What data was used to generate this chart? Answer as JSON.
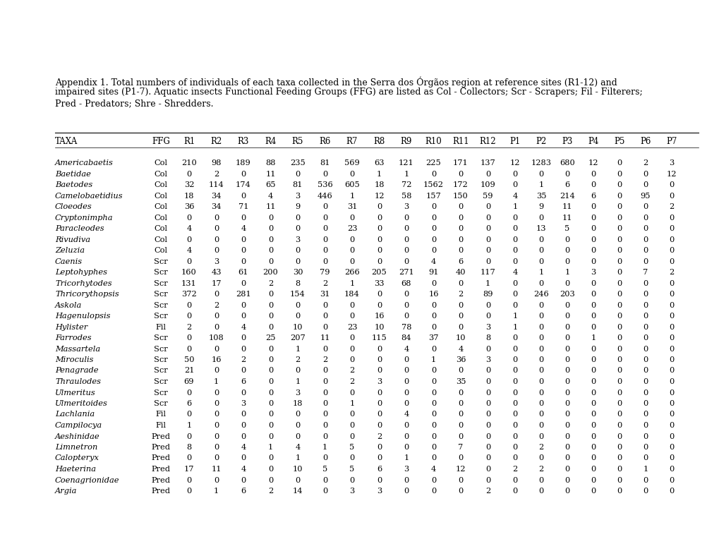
{
  "caption_line1": "Appendix 1. Total numbers of individuals of each taxa collected in the Serra dos Órgãos region at reference sites (R1-12) and",
  "caption_line2": "impaired sites (P1-7). Aquatic insects Functional Feeding Groups (FFG) are listed as Col - Collectors; Scr - Scrapers; Fil - Filterers;",
  "caption_line3": "Pred - Predators; Shre - Shredders.",
  "columns": [
    "TAXA",
    "FFG",
    "R1",
    "R2",
    "R3",
    "R4",
    "R5",
    "R6",
    "R7",
    "R8",
    "R9",
    "R10",
    "R11",
    "R12",
    "P1",
    "P2",
    "P3",
    "P4",
    "P5",
    "P6",
    "P7"
  ],
  "rows": [
    [
      "Americabaetis",
      "Col",
      210,
      98,
      189,
      88,
      235,
      81,
      569,
      63,
      121,
      225,
      171,
      137,
      12,
      1283,
      680,
      12,
      0,
      2,
      3
    ],
    [
      "Baetidae",
      "Col",
      0,
      2,
      0,
      11,
      0,
      0,
      0,
      1,
      1,
      0,
      0,
      0,
      0,
      0,
      0,
      0,
      0,
      0,
      12
    ],
    [
      "Baetodes",
      "Col",
      32,
      114,
      174,
      65,
      81,
      536,
      605,
      18,
      72,
      1562,
      172,
      109,
      0,
      1,
      6,
      0,
      0,
      0,
      0
    ],
    [
      "Camelobaetidius",
      "Col",
      18,
      34,
      0,
      4,
      3,
      446,
      1,
      12,
      58,
      157,
      150,
      59,
      4,
      35,
      214,
      6,
      0,
      95,
      0
    ],
    [
      "Cloeodes",
      "Col",
      36,
      34,
      71,
      11,
      9,
      0,
      31,
      0,
      3,
      0,
      0,
      0,
      1,
      9,
      11,
      0,
      0,
      0,
      2
    ],
    [
      "Cryptonimpha",
      "Col",
      0,
      0,
      0,
      0,
      0,
      0,
      0,
      0,
      0,
      0,
      0,
      0,
      0,
      0,
      11,
      0,
      0,
      0,
      0
    ],
    [
      "Paracleodes",
      "Col",
      4,
      0,
      4,
      0,
      0,
      0,
      23,
      0,
      0,
      0,
      0,
      0,
      0,
      13,
      5,
      0,
      0,
      0,
      0
    ],
    [
      "Rivudiva",
      "Col",
      0,
      0,
      0,
      0,
      3,
      0,
      0,
      0,
      0,
      0,
      0,
      0,
      0,
      0,
      0,
      0,
      0,
      0,
      0
    ],
    [
      "Zeluzia",
      "Col",
      4,
      0,
      0,
      0,
      0,
      0,
      0,
      0,
      0,
      0,
      0,
      0,
      0,
      0,
      0,
      0,
      0,
      0,
      0
    ],
    [
      "Caenis",
      "Scr",
      0,
      3,
      0,
      0,
      0,
      0,
      0,
      0,
      0,
      4,
      6,
      0,
      0,
      0,
      0,
      0,
      0,
      0,
      0
    ],
    [
      "Leptohyphes",
      "Scr",
      160,
      43,
      61,
      200,
      30,
      79,
      266,
      205,
      271,
      91,
      40,
      117,
      4,
      1,
      1,
      3,
      0,
      7,
      2
    ],
    [
      "Tricorhytodes",
      "Scr",
      131,
      17,
      0,
      2,
      8,
      2,
      1,
      33,
      68,
      0,
      0,
      1,
      0,
      0,
      0,
      0,
      0,
      0,
      0
    ],
    [
      "Thricorythopsis",
      "Scr",
      372,
      0,
      281,
      0,
      154,
      31,
      184,
      0,
      0,
      16,
      2,
      89,
      0,
      246,
      203,
      0,
      0,
      0,
      0
    ],
    [
      "Askola",
      "Scr",
      0,
      2,
      0,
      0,
      0,
      0,
      0,
      0,
      0,
      0,
      0,
      0,
      0,
      0,
      0,
      0,
      0,
      0,
      0
    ],
    [
      "Hagenulopsis",
      "Scr",
      0,
      0,
      0,
      0,
      0,
      0,
      0,
      16,
      0,
      0,
      0,
      0,
      1,
      0,
      0,
      0,
      0,
      0,
      0
    ],
    [
      "Hylister",
      "Fil",
      2,
      0,
      4,
      0,
      10,
      0,
      23,
      10,
      78,
      0,
      0,
      3,
      1,
      0,
      0,
      0,
      0,
      0,
      0
    ],
    [
      "Farrodes",
      "Scr",
      0,
      108,
      0,
      25,
      207,
      11,
      0,
      115,
      84,
      37,
      10,
      8,
      0,
      0,
      0,
      1,
      0,
      0,
      0
    ],
    [
      "Massartela",
      "Scr",
      0,
      0,
      0,
      0,
      1,
      0,
      0,
      0,
      4,
      0,
      4,
      0,
      0,
      0,
      0,
      0,
      0,
      0,
      0
    ],
    [
      "Miroculis",
      "Scr",
      50,
      16,
      2,
      0,
      2,
      2,
      0,
      0,
      0,
      1,
      36,
      3,
      0,
      0,
      0,
      0,
      0,
      0,
      0
    ],
    [
      "Penagrade",
      "Scr",
      21,
      0,
      0,
      0,
      0,
      0,
      2,
      0,
      0,
      0,
      0,
      0,
      0,
      0,
      0,
      0,
      0,
      0,
      0
    ],
    [
      "Thraulodes",
      "Scr",
      69,
      1,
      6,
      0,
      1,
      0,
      2,
      3,
      0,
      0,
      35,
      0,
      0,
      0,
      0,
      0,
      0,
      0,
      0
    ],
    [
      "Ulmeritus",
      "Scr",
      0,
      0,
      0,
      0,
      3,
      0,
      0,
      0,
      0,
      0,
      0,
      0,
      0,
      0,
      0,
      0,
      0,
      0,
      0
    ],
    [
      "Ulmeritoides",
      "Scr",
      6,
      0,
      3,
      0,
      18,
      0,
      1,
      0,
      0,
      0,
      0,
      0,
      0,
      0,
      0,
      0,
      0,
      0,
      0
    ],
    [
      "Lachlania",
      "Fil",
      0,
      0,
      0,
      0,
      0,
      0,
      0,
      0,
      4,
      0,
      0,
      0,
      0,
      0,
      0,
      0,
      0,
      0,
      0
    ],
    [
      "Campilocya",
      "Fil",
      1,
      0,
      0,
      0,
      0,
      0,
      0,
      0,
      0,
      0,
      0,
      0,
      0,
      0,
      0,
      0,
      0,
      0,
      0
    ],
    [
      "Aeshinidae",
      "Pred",
      0,
      0,
      0,
      0,
      0,
      0,
      0,
      2,
      0,
      0,
      0,
      0,
      0,
      0,
      0,
      0,
      0,
      0,
      0
    ],
    [
      "Limnetron",
      "Pred",
      8,
      0,
      4,
      1,
      4,
      1,
      5,
      0,
      0,
      0,
      7,
      0,
      0,
      2,
      0,
      0,
      0,
      0,
      0
    ],
    [
      "Calopteryx",
      "Pred",
      0,
      0,
      0,
      0,
      1,
      0,
      0,
      0,
      1,
      0,
      0,
      0,
      0,
      0,
      0,
      0,
      0,
      0,
      0
    ],
    [
      "Haeterina",
      "Pred",
      17,
      11,
      4,
      0,
      10,
      5,
      5,
      6,
      3,
      4,
      12,
      0,
      2,
      2,
      0,
      0,
      0,
      1,
      0
    ],
    [
      "Coenagrionidae",
      "Pred",
      0,
      0,
      0,
      0,
      0,
      0,
      0,
      0,
      0,
      0,
      0,
      0,
      0,
      0,
      0,
      0,
      0,
      0,
      0
    ],
    [
      "Argia",
      "Pred",
      0,
      1,
      6,
      2,
      14,
      0,
      3,
      3,
      0,
      0,
      0,
      2,
      0,
      0,
      0,
      0,
      0,
      0,
      0
    ]
  ],
  "bg_color": "#ffffff",
  "text_color": "#000000",
  "font_size_caption": 9.0,
  "font_size_header": 8.5,
  "font_size_data": 8.2
}
